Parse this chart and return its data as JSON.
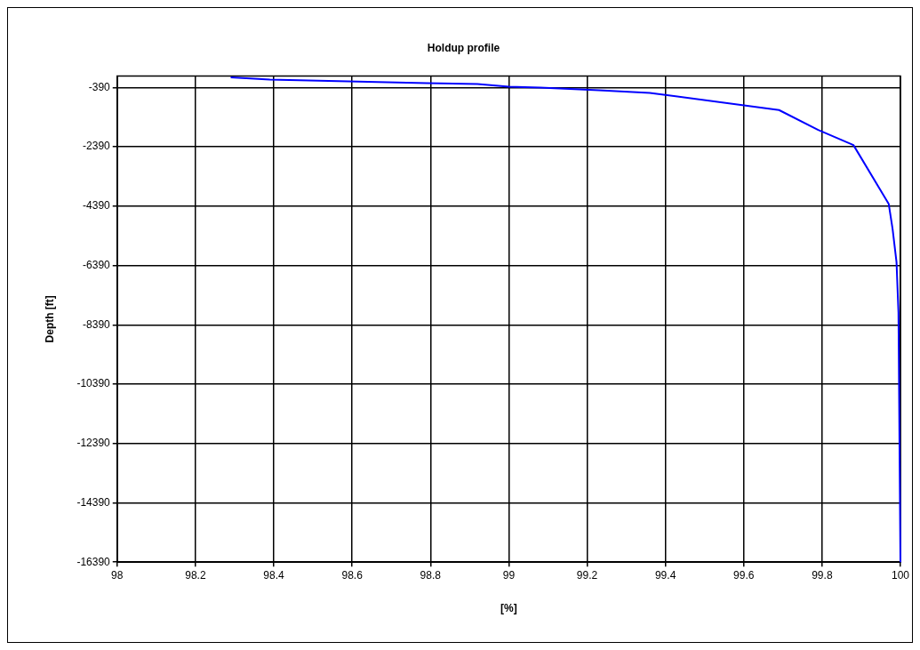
{
  "chart_data": {
    "type": "line",
    "title": "Holdup profile",
    "xlabel": "[%]",
    "ylabel": "Depth [ft]",
    "series": [
      {
        "color": "#0000ff",
        "x": [
          98.29,
          98.39,
          98.59,
          98.79,
          98.92,
          99.0,
          99.08,
          99.23,
          99.36,
          99.69,
          99.79,
          99.88,
          99.97,
          99.98,
          99.99,
          99.995,
          100
        ],
        "values": [
          -50,
          -120,
          -180,
          -240,
          -270,
          -360,
          -390,
          -480,
          -570,
          -1150,
          -1820,
          -2330,
          -4310,
          -5160,
          -6280,
          -7980,
          -16390
        ]
      }
    ],
    "xlim": [
      98,
      100
    ],
    "xticks": [
      98,
      98.2,
      98.4,
      98.6,
      98.8,
      99,
      99.2,
      99.4,
      99.6,
      99.8,
      100
    ],
    "ylim": [
      -16390,
      0
    ],
    "yticks": [
      -390,
      -2390,
      -4390,
      -6390,
      -8390,
      -10390,
      -12390,
      -14390,
      -16390
    ],
    "grid": true,
    "legend": false,
    "marker": "none",
    "line_style": "solid"
  }
}
